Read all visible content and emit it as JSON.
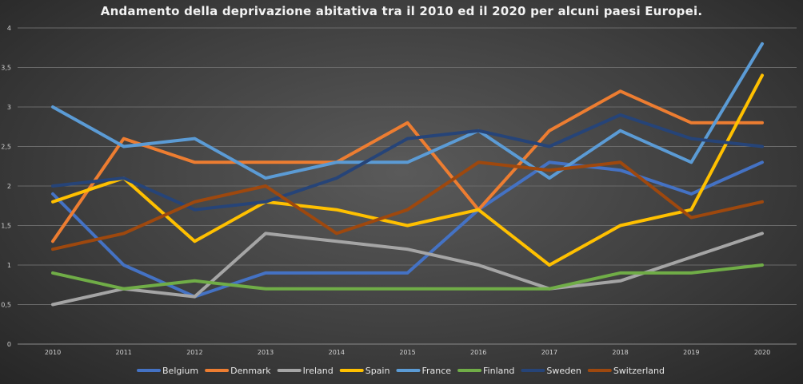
{
  "chart_data": {
    "type": "line",
    "title": "Andamento della deprivazione abitativa tra il 2010 ed il 2020 per alcuni paesi Europei.",
    "x": [
      "2010",
      "2011",
      "2012",
      "2013",
      "2014",
      "2015",
      "2016",
      "2017",
      "2018",
      "2019",
      "2020"
    ],
    "y_ticks": [
      "0",
      "0,5",
      "1",
      "1,5",
      "2",
      "2,5",
      "3",
      "3,5",
      "4"
    ],
    "ylim": [
      0,
      4
    ],
    "grid": true,
    "legend_position": "bottom",
    "series": [
      {
        "name": "Belgium",
        "color": "#4472c4",
        "values": [
          1.9,
          1.0,
          0.6,
          0.9,
          0.9,
          0.9,
          1.7,
          2.3,
          2.2,
          1.9,
          2.3
        ]
      },
      {
        "name": "Denmark",
        "color": "#ed7d31",
        "values": [
          1.3,
          2.6,
          2.3,
          2.3,
          2.3,
          2.8,
          1.7,
          2.7,
          3.2,
          2.8,
          2.8
        ]
      },
      {
        "name": "Ireland",
        "color": "#a5a5a5",
        "values": [
          0.5,
          0.7,
          0.6,
          1.4,
          1.3,
          1.2,
          1.0,
          0.7,
          0.8,
          1.1,
          1.4
        ]
      },
      {
        "name": "Spain",
        "color": "#ffc000",
        "values": [
          1.8,
          2.1,
          1.3,
          1.8,
          1.7,
          1.5,
          1.7,
          1.0,
          1.5,
          1.7,
          3.4
        ]
      },
      {
        "name": "France",
        "color": "#5b9bd5",
        "values": [
          3.0,
          2.5,
          2.6,
          2.1,
          2.3,
          2.3,
          2.7,
          2.1,
          2.7,
          2.3,
          3.8
        ]
      },
      {
        "name": "Finland",
        "color": "#70ad47",
        "values": [
          0.9,
          0.7,
          0.8,
          0.7,
          0.7,
          0.7,
          0.7,
          0.7,
          0.9,
          0.9,
          1.0
        ]
      },
      {
        "name": "Sweden",
        "color": "#264478",
        "values": [
          2.0,
          2.1,
          1.7,
          1.8,
          2.1,
          2.6,
          2.7,
          2.5,
          2.9,
          2.6,
          2.5
        ]
      },
      {
        "name": "Switzerland",
        "color": "#9e480e",
        "values": [
          1.2,
          1.4,
          1.8,
          2.0,
          1.4,
          1.7,
          2.3,
          2.2,
          2.3,
          1.6,
          1.8
        ]
      }
    ]
  }
}
